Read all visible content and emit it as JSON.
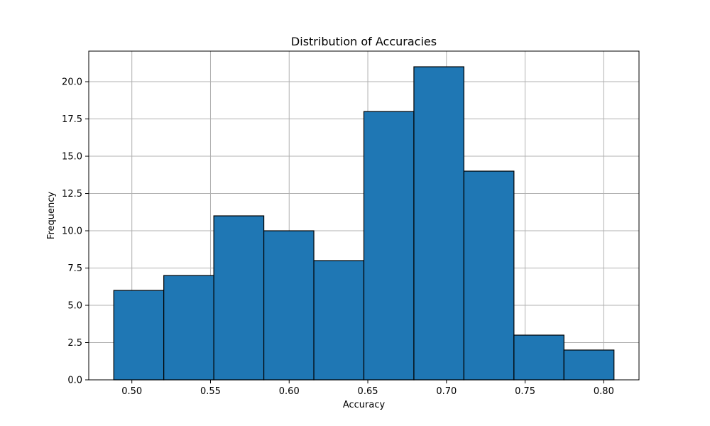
{
  "chart_data": {
    "type": "bar",
    "title": "Distribution of Accuracies",
    "xlabel": "Accuracy",
    "ylabel": "Frequency",
    "bin_edges": [
      0.4885,
      0.5203,
      0.5521,
      0.5839,
      0.6157,
      0.6475,
      0.6793,
      0.7111,
      0.7429,
      0.7747,
      0.8065
    ],
    "values": [
      6,
      7,
      11,
      10,
      8,
      18,
      21,
      14,
      3,
      2
    ],
    "xlim": [
      0.4726,
      0.8224
    ],
    "ylim": [
      0,
      22.05
    ],
    "x_ticks": [
      0.5,
      0.55,
      0.6,
      0.65,
      0.7,
      0.75,
      0.8
    ],
    "x_tick_labels": [
      "0.50",
      "0.55",
      "0.60",
      "0.65",
      "0.70",
      "0.75",
      "0.80"
    ],
    "y_ticks": [
      0,
      2.5,
      5,
      7.5,
      10,
      12.5,
      15,
      17.5,
      20
    ],
    "y_tick_labels": [
      "0.0",
      "2.5",
      "5.0",
      "7.5",
      "10.0",
      "12.5",
      "15.0",
      "17.5",
      "20.0"
    ],
    "grid": true,
    "bar_color": "#1f77b4",
    "edge_color": "#000000"
  }
}
